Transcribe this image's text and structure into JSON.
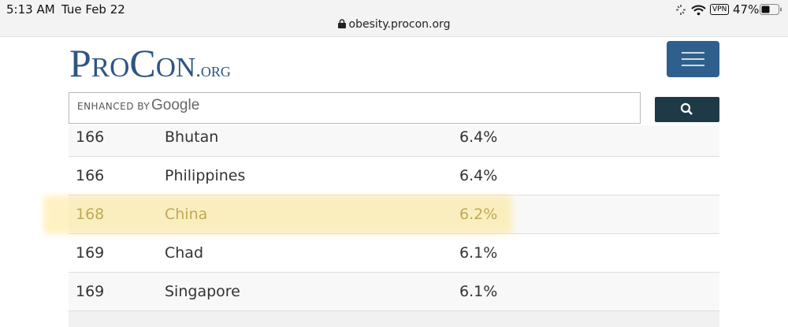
{
  "status_bar": {
    "time": "5:13 AM",
    "date": "Tue Feb 22",
    "url": "obesity.procon.org",
    "vpn": "VPN",
    "battery": "47%"
  },
  "header": {
    "logo": "ProCon",
    "logo_suffix": ".org",
    "search_label": "ENHANCED BY",
    "search_brand": "Google"
  },
  "table": {
    "rows": [
      [
        "166",
        "Bhutan",
        "6.4%"
      ],
      [
        "166",
        "Philippines",
        "6.4%"
      ],
      [
        "168",
        "China",
        "6.2%"
      ],
      [
        "169",
        "Chad",
        "6.1%"
      ],
      [
        "169",
        "Singapore",
        "6.1%"
      ]
    ]
  }
}
